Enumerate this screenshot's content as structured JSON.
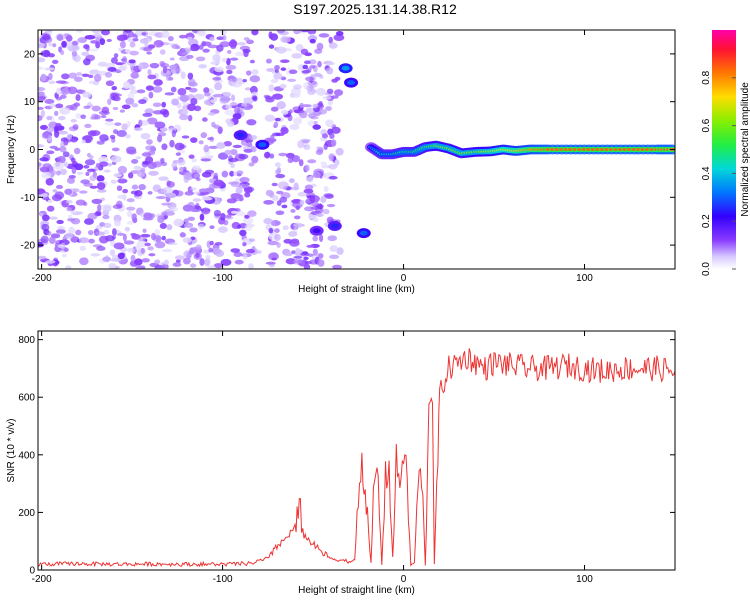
{
  "title": "S197.2025.131.14.38.R12",
  "colors": {
    "scatter_purple": "#7a1cff",
    "track_red": "#e8332b",
    "snr_line": "#ee3333",
    "colorbar": [
      "#ffffff",
      "#b8a8ff",
      "#7a33ff",
      "#3300ff",
      "#00a0ff",
      "#00e8b0",
      "#33ee33",
      "#c0ee00",
      "#ffcc00",
      "#ff6600",
      "#ff0033",
      "#ff00aa"
    ]
  },
  "chart_data": [
    {
      "type": "heatmap",
      "name": "spectrogram",
      "xlabel": "Height of straight line (km)",
      "ylabel": "Frequency (Hz)",
      "xlim": [
        -202,
        150
      ],
      "ylim": [
        -25,
        25
      ],
      "xticks": [
        -200,
        -100,
        0,
        100
      ],
      "xtick_labels": [
        "-200",
        "-100",
        "0",
        "100"
      ],
      "yticks": [
        20,
        10,
        0,
        -10,
        -20
      ],
      "ytick_labels": [
        "20",
        "10",
        "0",
        "-10",
        "-20"
      ],
      "colorbar": {
        "label": "Normalized spectral amplitude",
        "range": [
          0,
          1
        ],
        "ticks": [
          0.0,
          0.2,
          0.4,
          0.6,
          0.8
        ],
        "tick_labels": [
          "0.0",
          "0.2",
          "0.4",
          "0.6",
          "0.8"
        ]
      },
      "features": {
        "noise_band": {
          "x": [
            -202,
            -35
          ],
          "y": [
            -25,
            25
          ],
          "amplitude": 0.1
        },
        "gap": {
          "x": [
            -38,
            -20
          ],
          "y": [
            -25,
            25
          ],
          "amplitude": 0.0
        },
        "blobs": [
          {
            "x": -32,
            "y": 17,
            "amplitude": 0.35
          },
          {
            "x": -29,
            "y": 14,
            "amplitude": 0.3
          },
          {
            "x": -78,
            "y": 1,
            "amplitude": 0.3
          },
          {
            "x": -90,
            "y": 3,
            "amplitude": 0.25
          },
          {
            "x": -38,
            "y": -16,
            "amplitude": 0.25
          },
          {
            "x": -48,
            "y": -17,
            "amplitude": 0.2
          },
          {
            "x": -22,
            "y": -17.5,
            "amplitude": 0.3
          }
        ],
        "track": {
          "x": [
            -18,
            -12,
            -6,
            0,
            6,
            12,
            18,
            25,
            32,
            40,
            48,
            55,
            62,
            70,
            80,
            95,
            110,
            125,
            140,
            150
          ],
          "y": [
            0.5,
            -1,
            -1,
            -0.5,
            -0.5,
            0.5,
            0.8,
            0.2,
            -0.8,
            -0.5,
            -0.4,
            0,
            -0.3,
            0,
            0,
            0,
            0,
            0,
            0,
            0
          ],
          "amplitude": [
            0.35,
            0.45,
            0.45,
            0.5,
            0.5,
            0.55,
            0.6,
            0.6,
            0.6,
            0.6,
            0.65,
            0.7,
            0.75,
            0.8,
            0.85,
            0.85,
            0.85,
            0.85,
            0.85,
            0.85
          ]
        }
      }
    },
    {
      "type": "line",
      "name": "snr",
      "xlabel": "Height of straight line (km)",
      "ylabel": "SNR (10 * v/v)",
      "xlim": [
        -202,
        150
      ],
      "ylim": [
        0,
        830
      ],
      "xticks": [
        -200,
        -100,
        0,
        100
      ],
      "xtick_labels": [
        "-200",
        "-100",
        "0",
        "100"
      ],
      "yticks": [
        0,
        200,
        400,
        600,
        800
      ],
      "ytick_labels": [
        "0",
        "200",
        "400",
        "600",
        "800"
      ],
      "series": [
        {
          "x": [
            -202,
            -180,
            -160,
            -140,
            -120,
            -100,
            -85,
            -75,
            -70,
            -65,
            -60,
            -57,
            -55,
            -50,
            -45,
            -40,
            -35,
            -30,
            -27,
            -25,
            -23,
            -20,
            -18,
            -16,
            -14,
            -12,
            -10,
            -8,
            -6,
            -4,
            -2,
            0,
            2,
            4,
            6,
            8,
            10,
            12,
            14,
            16,
            17,
            19,
            20,
            22,
            25,
            30,
            35,
            40,
            45,
            50,
            60,
            70,
            80,
            90,
            100,
            110,
            120,
            130,
            140,
            150
          ],
          "y": [
            20,
            22,
            20,
            21,
            20,
            20,
            22,
            40,
            80,
            110,
            150,
            200,
            120,
            90,
            60,
            40,
            35,
            30,
            30,
            250,
            380,
            200,
            20,
            330,
            300,
            20,
            320,
            350,
            40,
            380,
            300,
            420,
            300,
            20,
            20,
            300,
            330,
            20,
            580,
            620,
            20,
            400,
            600,
            650,
            700,
            720,
            740,
            720,
            700,
            720,
            710,
            700,
            700,
            710,
            700,
            690,
            700,
            700,
            700,
            690
          ]
        }
      ]
    }
  ]
}
